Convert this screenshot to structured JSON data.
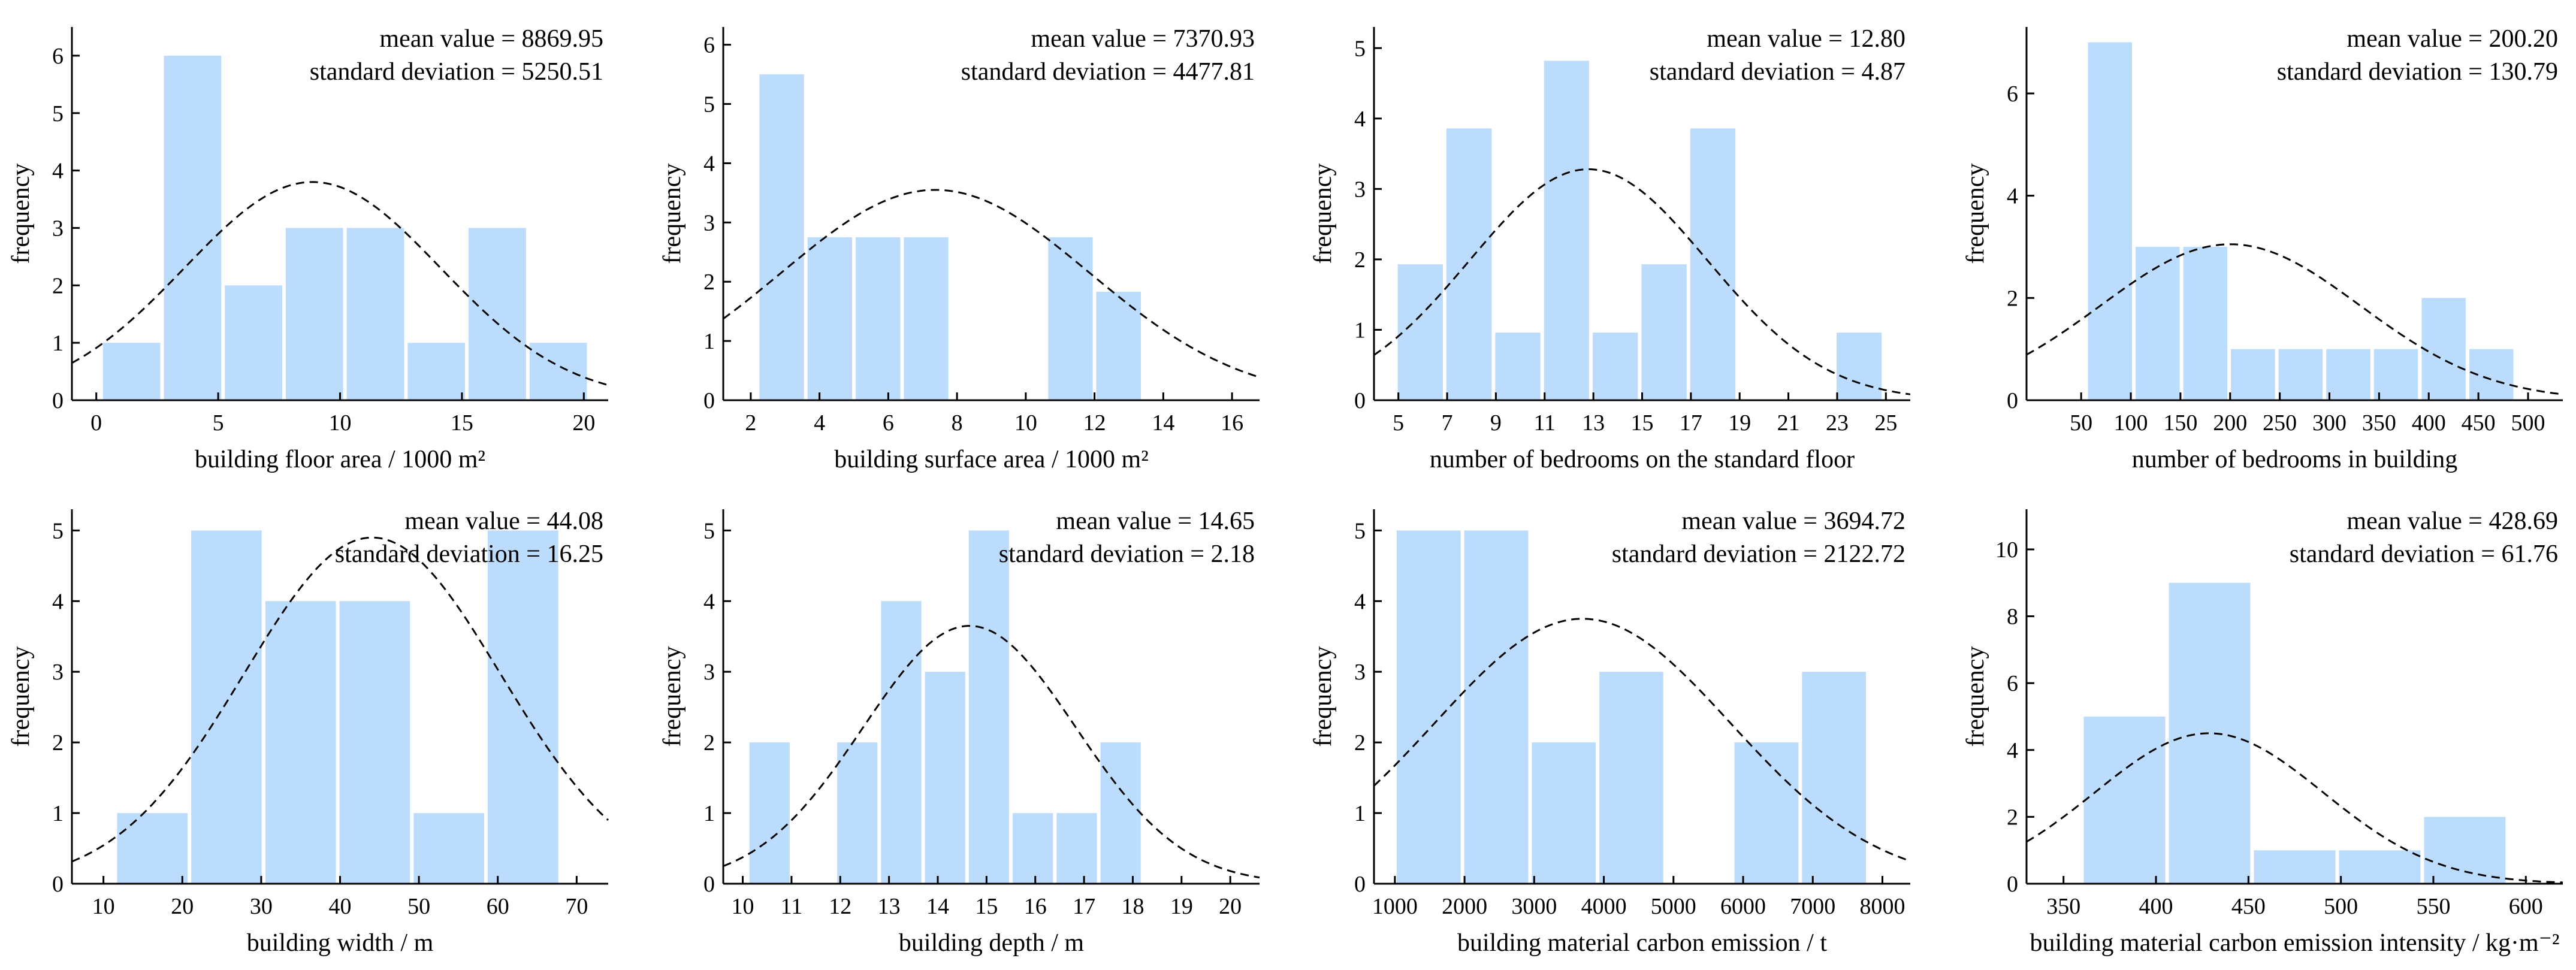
{
  "ylabel": "frequency",
  "stat_labels": {
    "mean": "mean value = ",
    "sd": "standard deviation = "
  },
  "chart_data": [
    {
      "type": "bar",
      "title": "",
      "xlabel": "building floor area / 1000 m²",
      "ylabel": "frequency",
      "mean": "8869.95",
      "sd": "5250.51",
      "xlim": [
        -1,
        21
      ],
      "ylim": [
        0,
        6.5
      ],
      "xticks": [
        0,
        5,
        10,
        15,
        20
      ],
      "yticks": [
        0,
        1,
        2,
        3,
        4,
        5,
        6
      ],
      "bin_edges": [
        0.2,
        2.7,
        5.2,
        7.7,
        10.2,
        12.7,
        15.2,
        17.7,
        20.2
      ],
      "values": [
        1,
        6,
        2,
        3,
        3,
        1,
        3,
        1
      ],
      "curve": {
        "mu": 8.87,
        "sigma": 5.25,
        "peak": 3.8
      }
    },
    {
      "type": "bar",
      "title": "",
      "xlabel": "building surface area / 1000 m²",
      "ylabel": "frequency",
      "mean": "7370.93",
      "sd": "4477.81",
      "xlim": [
        1.2,
        16.8
      ],
      "ylim": [
        0,
        6.3
      ],
      "xticks": [
        2,
        4,
        6,
        8,
        10,
        12,
        14,
        16
      ],
      "yticks": [
        0,
        1,
        2,
        3,
        4,
        5,
        6
      ],
      "bin_edges": [
        2.2,
        3.6,
        5.0,
        6.4,
        7.8,
        9.2,
        10.6,
        12.0,
        13.4,
        14.8
      ],
      "values": [
        5.5,
        2.75,
        2.75,
        2.75,
        0,
        0,
        2.75,
        1.83,
        0
      ],
      "curve": {
        "mu": 7.37,
        "sigma": 4.48,
        "peak": 3.55
      }
    },
    {
      "type": "bar",
      "title": "",
      "xlabel": "number of bedrooms on the standard floor",
      "ylabel": "frequency",
      "mean": "12.80",
      "sd": "4.87",
      "xlim": [
        4,
        26
      ],
      "ylim": [
        0,
        5.3
      ],
      "xticks": [
        5,
        7,
        9,
        11,
        13,
        15,
        17,
        19,
        21,
        23,
        25
      ],
      "yticks": [
        0,
        1,
        2,
        3,
        4,
        5
      ],
      "bin_edges": [
        4.9,
        6.9,
        8.9,
        10.9,
        12.9,
        14.9,
        16.9,
        18.9,
        20.9,
        22.9,
        24.9
      ],
      "values": [
        1.93,
        3.86,
        0.96,
        4.82,
        0.96,
        1.93,
        3.86,
        0,
        0,
        0.96
      ],
      "curve": {
        "mu": 12.8,
        "sigma": 4.87,
        "peak": 3.28
      }
    },
    {
      "type": "bar",
      "title": "",
      "xlabel": "number of bedrooms in building",
      "ylabel": "frequency",
      "mean": "200.20",
      "sd": "130.79",
      "xlim": [
        -5,
        535
      ],
      "ylim": [
        0,
        7.3
      ],
      "xticks": [
        50,
        100,
        150,
        200,
        250,
        300,
        350,
        400,
        450,
        500
      ],
      "yticks": [
        0,
        2,
        4,
        6
      ],
      "bin_edges": [
        55,
        103,
        151,
        199,
        247,
        295,
        343,
        391,
        439,
        487
      ],
      "values": [
        7,
        3,
        3,
        1,
        1,
        1,
        1,
        2,
        1
      ],
      "curve": {
        "mu": 200.2,
        "sigma": 130.79,
        "peak": 3.05
      }
    },
    {
      "type": "bar",
      "title": "",
      "xlabel": "building width / m",
      "ylabel": "frequency",
      "mean": "44.08",
      "sd": "16.25",
      "xlim": [
        6,
        74
      ],
      "ylim": [
        0,
        5.3
      ],
      "xticks": [
        10,
        20,
        30,
        40,
        50,
        60,
        70
      ],
      "yticks": [
        0,
        1,
        2,
        3,
        4,
        5
      ],
      "bin_edges": [
        11.5,
        20.9,
        30.3,
        39.7,
        49.1,
        58.5,
        67.9
      ],
      "values": [
        1,
        5,
        4,
        4,
        1,
        5
      ],
      "curve": {
        "mu": 44.08,
        "sigma": 16.25,
        "peak": 4.9
      }
    },
    {
      "type": "bar",
      "title": "",
      "xlabel": "building depth / m",
      "ylabel": "frequency",
      "mean": "14.65",
      "sd": "2.18",
      "xlim": [
        9.6,
        20.6
      ],
      "ylim": [
        0,
        5.3
      ],
      "xticks": [
        10,
        11,
        12,
        13,
        14,
        15,
        16,
        17,
        18,
        19,
        20
      ],
      "yticks": [
        0,
        1,
        2,
        3,
        4,
        5
      ],
      "bin_edges": [
        10.1,
        11.0,
        11.9,
        12.8,
        13.7,
        14.6,
        15.5,
        16.4,
        17.3,
        18.2,
        19.1
      ],
      "values": [
        2,
        0,
        2,
        4,
        3,
        5,
        1,
        1,
        2,
        0
      ],
      "curve": {
        "mu": 14.65,
        "sigma": 2.18,
        "peak": 3.65
      }
    },
    {
      "type": "bar",
      "title": "",
      "xlabel": "building material carbon emission / t",
      "ylabel": "frequency",
      "mean": "3694.72",
      "sd": "2122.72",
      "xlim": [
        700,
        8400
      ],
      "ylim": [
        0,
        5.3
      ],
      "xticks": [
        1000,
        2000,
        3000,
        4000,
        5000,
        6000,
        7000,
        8000
      ],
      "yticks": [
        0,
        1,
        2,
        3,
        4,
        5
      ],
      "bin_edges": [
        1000,
        1970,
        2940,
        3910,
        4880,
        5850,
        6820,
        7790
      ],
      "values": [
        5,
        5,
        2,
        3,
        0,
        2,
        3
      ],
      "curve": {
        "mu": 3694.72,
        "sigma": 2122.72,
        "peak": 3.75
      }
    },
    {
      "type": "bar",
      "title": "",
      "xlabel": "building material carbon emission intensity / kg·m⁻²",
      "ylabel": "frequency",
      "mean": "428.69",
      "sd": "61.76",
      "xlim": [
        330,
        620
      ],
      "ylim": [
        0,
        11.2
      ],
      "xticks": [
        350,
        400,
        450,
        500,
        550,
        600
      ],
      "yticks": [
        0,
        2,
        4,
        6,
        8,
        10
      ],
      "bin_edges": [
        360,
        406,
        452,
        498,
        544,
        590
      ],
      "values": [
        5,
        9,
        1,
        1,
        2
      ],
      "curve": {
        "mu": 428.69,
        "sigma": 61.76,
        "peak": 4.5
      }
    }
  ]
}
